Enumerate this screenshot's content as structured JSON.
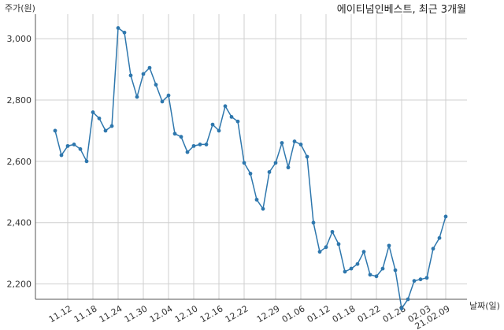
{
  "chart_data": {
    "type": "line",
    "title": "에이티넘인베스트, 최근 3개월",
    "ylabel": "주가(원)",
    "xlabel": "날짜(일)",
    "ylim": [
      2150,
      3080
    ],
    "yticks": [
      2200,
      2400,
      2600,
      2800,
      3000
    ],
    "ytick_labels": [
      "2,200",
      "2,400",
      "2,600",
      "2,800",
      "3,000"
    ],
    "xtick_labels": [
      "11.12",
      "11.18",
      "11.24",
      "11.30",
      "12.04",
      "12.10",
      "12.16",
      "12.22",
      "12.29",
      "01.06",
      "01.12",
      "01.18",
      "01.22",
      "01.28",
      "02.03",
      "21.02.09"
    ],
    "xtick_index": [
      2,
      6,
      10,
      14,
      18,
      22,
      26,
      30,
      35,
      39,
      43,
      47,
      51,
      55,
      59,
      62
    ],
    "grid": true,
    "line_color": "#2e77ad",
    "series": [
      {
        "values": [
          2700,
          2620,
          2650,
          2655,
          2640,
          2600,
          2760,
          2740,
          2700,
          2715,
          3035,
          3020,
          2880,
          2810,
          2885,
          2905,
          2850,
          2795,
          2815,
          2690,
          2680,
          2630,
          2650,
          2655,
          2655,
          2720,
          2700,
          2780,
          2745,
          2730,
          2595,
          2560,
          2475,
          2445,
          2565,
          2595,
          2660,
          2580,
          2665,
          2655,
          2615,
          2400,
          2305,
          2320,
          2370,
          2330,
          2240,
          2250,
          2265,
          2305,
          2230,
          2225,
          2250,
          2325,
          2245,
          2120,
          2150,
          2210,
          2215,
          2220,
          2315,
          2350,
          2420
        ]
      }
    ]
  }
}
